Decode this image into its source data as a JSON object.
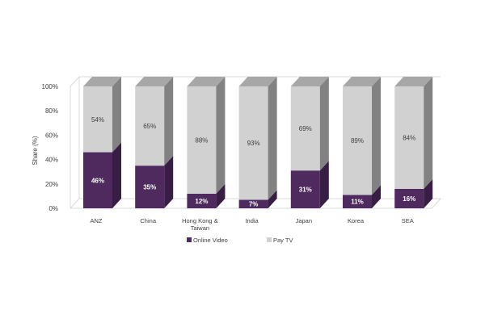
{
  "chart_data": {
    "type": "bar",
    "stacked": true,
    "style": "3d-stacked-percent",
    "categories": [
      [
        "ANZ"
      ],
      [
        "China"
      ],
      [
        "Hong Kong &",
        "Taiwan"
      ],
      [
        "India"
      ],
      [
        "Japan"
      ],
      [
        "Korea"
      ],
      [
        "SEA"
      ]
    ],
    "series": [
      {
        "name": "Online Video",
        "values": [
          46,
          35,
          12,
          7,
          31,
          11,
          16
        ],
        "color": "#4e2a5e"
      },
      {
        "name": "Pay TV",
        "values": [
          54,
          65,
          88,
          93,
          69,
          89,
          84
        ],
        "color": "#d1d1d1"
      }
    ],
    "ylabel": "Share (%)",
    "xlabel": "",
    "ylim": [
      0,
      100
    ],
    "yticks": [
      "0%",
      "20%",
      "40%",
      "60%",
      "80%",
      "100%"
    ],
    "value_suffix": "%",
    "legend_position": "bottom",
    "grid": false
  }
}
